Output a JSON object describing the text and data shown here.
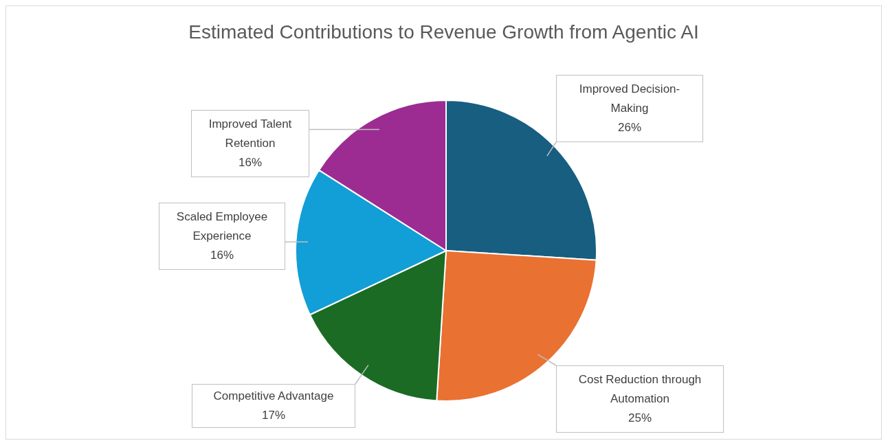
{
  "chart_data": {
    "type": "pie",
    "title": "Estimated Contributions to Revenue Growth from Agentic AI",
    "categories": [
      "Improved Decision-Making",
      "Cost Reduction through Automation",
      "Competitive Advantage",
      "Scaled Employee Experience",
      "Improved Talent Retention"
    ],
    "values": [
      26,
      25,
      17,
      16,
      16
    ],
    "colors": [
      "#175e80",
      "#e97132",
      "#1b6b25",
      "#129ed6",
      "#9c2c92"
    ],
    "value_labels": [
      "26%",
      "25%",
      "17%",
      "16%",
      "16%"
    ],
    "legend": false
  }
}
